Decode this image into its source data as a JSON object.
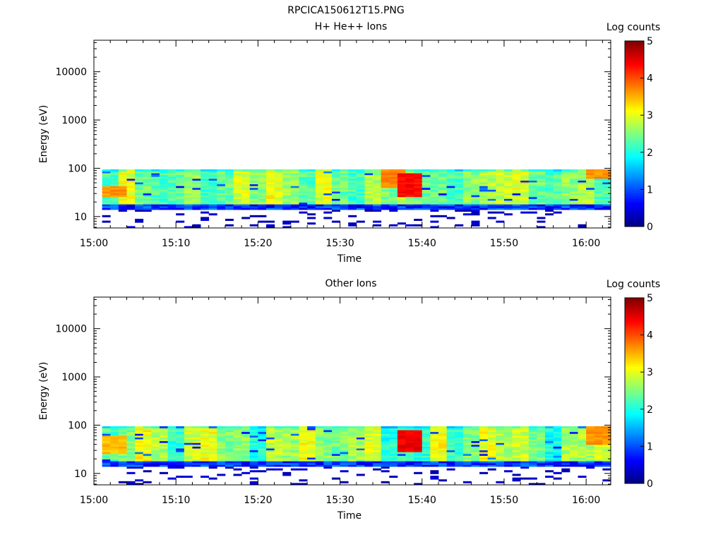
{
  "figure_title": "RPCICA150612T15.PNG",
  "chart_data": [
    {
      "type": "heatmap",
      "title": "H+ He++ Ions",
      "xlabel": "Time",
      "ylabel": "Energy (eV)",
      "x_ticks": [
        "15:00",
        "15:10",
        "15:20",
        "15:30",
        "15:40",
        "15:50",
        "16:00"
      ],
      "x_range": [
        "15:00",
        "16:03"
      ],
      "y_scale": "log",
      "y_ticks": [
        "10",
        "100",
        "1000",
        "10000"
      ],
      "y_range": [
        5.8,
        45000
      ],
      "data_time_range": [
        "15:01",
        "16:03"
      ],
      "data_energy_range": [
        5.8,
        95
      ],
      "colorbar": {
        "label": "Log counts",
        "ticks": [
          "0",
          "1",
          "2",
          "3",
          "4",
          "5"
        ],
        "range": [
          0,
          5
        ],
        "colormap": "rainbow"
      },
      "features": [
        {
          "time": "15:02",
          "energy_range": [
            25,
            45
          ],
          "log_counts": 3.8
        },
        {
          "time": "15:38",
          "energy_range": [
            25,
            80
          ],
          "log_counts": 4.5
        },
        {
          "time": "15:36",
          "energy_range": [
            40,
            95
          ],
          "log_counts": 3.9
        },
        {
          "time": "16:01",
          "energy_range": [
            60,
            95
          ],
          "log_counts": 3.8
        }
      ],
      "seed": 13
    },
    {
      "type": "heatmap",
      "title": "Other Ions",
      "xlabel": "Time",
      "ylabel": "Energy (eV)",
      "x_ticks": [
        "15:00",
        "15:10",
        "15:20",
        "15:30",
        "15:40",
        "15:50",
        "16:00"
      ],
      "x_range": [
        "15:00",
        "16:03"
      ],
      "y_scale": "log",
      "y_ticks": [
        "10",
        "100",
        "1000",
        "10000"
      ],
      "y_range": [
        5.8,
        45000
      ],
      "data_time_range": [
        "15:01",
        "16:03"
      ],
      "data_energy_range": [
        5.8,
        95
      ],
      "colorbar": {
        "label": "Log counts",
        "ticks": [
          "0",
          "1",
          "2",
          "3",
          "4",
          "5"
        ],
        "range": [
          0,
          5
        ],
        "colormap": "rainbow"
      },
      "features": [
        {
          "time": "15:02",
          "energy_range": [
            25,
            60
          ],
          "log_counts": 3.6
        },
        {
          "time": "15:38",
          "energy_range": [
            28,
            80
          ],
          "log_counts": 4.6
        },
        {
          "time": "16:01",
          "energy_range": [
            40,
            95
          ],
          "log_counts": 3.8
        }
      ],
      "seed": 29
    }
  ]
}
